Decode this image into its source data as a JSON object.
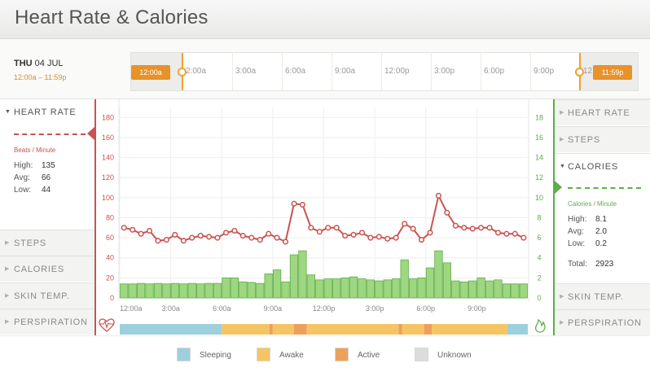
{
  "header": {
    "title": "Heart Rate & Calories"
  },
  "date": {
    "weekday": "THU",
    "date": "04 JUL",
    "range": "12:00a – 11:59p"
  },
  "timeline": {
    "start_flag": "12:00a",
    "end_flag": "11:59p",
    "labels": [
      "2:00a",
      "3:00a",
      "6:00a",
      "9:00a",
      "12:00p",
      "3:00p",
      "6:00p",
      "9:00p",
      "12"
    ]
  },
  "left_panel": {
    "active": {
      "label": "HEART RATE",
      "unit": "Beats / Minute",
      "stats": [
        {
          "label": "High:",
          "value": "135"
        },
        {
          "label": "Avg:",
          "value": "66"
        },
        {
          "label": "Low:",
          "value": "44"
        }
      ]
    },
    "items": [
      "STEPS",
      "CALORIES",
      "SKIN TEMP.",
      "PERSPIRATION"
    ]
  },
  "right_panel": {
    "items_top": [
      "HEART RATE",
      "STEPS"
    ],
    "active": {
      "label": "CALORIES",
      "unit": "Calories / Minute",
      "stats": [
        {
          "label": "High:",
          "value": "8.1"
        },
        {
          "label": "Avg:",
          "value": "2.0"
        },
        {
          "label": "Low:",
          "value": "0.2"
        }
      ],
      "total_label": "Total:",
      "total_value": "2923"
    },
    "items_bottom": [
      "SKIN TEMP.",
      "PERSPIRATION"
    ]
  },
  "icons": {
    "heart": "heart-rate-icon",
    "flame": "flame-icon",
    "caret_down": "caret-down-icon",
    "caret_right": "caret-right-icon"
  },
  "legend": [
    {
      "label": "Sleeping",
      "color": "#9ecfdc"
    },
    {
      "label": "Awake",
      "color": "#f5c563"
    },
    {
      "label": "Active",
      "color": "#eda05b"
    },
    {
      "label": "Unknown",
      "color": "#dcdcdc"
    }
  ],
  "colors": {
    "heart_rate": "#c9534f",
    "calories": "#5cae4a",
    "calories_fill": "#9fd680",
    "accent": "#e8922a"
  },
  "chart_data": {
    "type": "bar",
    "x_unit": "hours",
    "x_range": [
      0,
      24
    ],
    "x_ticks": [
      {
        "x": 0,
        "label": "12:00a"
      },
      {
        "x": 3,
        "label": "3:00a"
      },
      {
        "x": 6,
        "label": "6:00a"
      },
      {
        "x": 9,
        "label": "9:00a"
      },
      {
        "x": 12,
        "label": "12:00p"
      },
      {
        "x": 15,
        "label": "3:00p"
      },
      {
        "x": 18,
        "label": "6:00p"
      },
      {
        "x": 21,
        "label": "9:00p"
      }
    ],
    "left_axis": {
      "range": [
        0,
        190
      ],
      "ticks": [
        0,
        20,
        40,
        60,
        80,
        100,
        120,
        140,
        160,
        180
      ]
    },
    "right_axis": {
      "range": [
        0,
        19
      ],
      "ticks": [
        0,
        2,
        4,
        6,
        8,
        10,
        12,
        14,
        16,
        18
      ]
    },
    "grid": true,
    "series": [
      {
        "name": "Heart Rate",
        "type": "line",
        "axis": "left",
        "x": [
          0,
          0.5,
          1,
          1.5,
          2,
          2.5,
          3,
          3.5,
          4,
          4.5,
          5,
          5.5,
          6,
          6.5,
          7,
          7.5,
          8,
          8.5,
          9,
          9.5,
          10,
          10.5,
          11,
          11.5,
          12,
          12.5,
          13,
          13.5,
          14,
          14.5,
          15,
          15.5,
          16,
          16.5,
          17,
          17.5,
          18,
          18.5,
          19,
          19.5,
          20,
          20.5,
          21,
          21.5,
          22,
          22.5,
          23,
          23.5
        ],
        "values": [
          70,
          68,
          64,
          67,
          57,
          58,
          63,
          57,
          60,
          62,
          61,
          60,
          65,
          67,
          62,
          60,
          58,
          64,
          60,
          56,
          94,
          93,
          70,
          66,
          70,
          70,
          62,
          63,
          65,
          60,
          61,
          59,
          60,
          74,
          69,
          58,
          65,
          102,
          85,
          72,
          70,
          69,
          70,
          70,
          65,
          64,
          64,
          60
        ]
      },
      {
        "name": "Calories",
        "type": "bar",
        "axis": "right",
        "x": [
          0,
          0.5,
          1,
          1.5,
          2,
          2.5,
          3,
          3.5,
          4,
          4.5,
          5,
          5.5,
          6,
          6.5,
          7,
          7.5,
          8,
          8.5,
          9,
          9.5,
          10,
          10.5,
          11,
          11.5,
          12,
          12.5,
          13,
          13.5,
          14,
          14.5,
          15,
          15.5,
          16,
          16.5,
          17,
          17.5,
          18,
          18.5,
          19,
          19.5,
          20,
          20.5,
          21,
          21.5,
          22,
          22.5,
          23,
          23.5
        ],
        "values": [
          1.4,
          1.4,
          1.45,
          1.4,
          1.45,
          1.4,
          1.45,
          1.4,
          1.45,
          1.4,
          1.45,
          1.45,
          2.0,
          2.0,
          1.6,
          1.55,
          1.45,
          2.4,
          2.8,
          1.6,
          4.3,
          4.7,
          2.3,
          1.8,
          1.9,
          1.9,
          2.0,
          2.1,
          1.9,
          1.8,
          1.7,
          1.8,
          1.9,
          3.8,
          1.9,
          2.0,
          3.0,
          4.7,
          3.5,
          1.7,
          1.6,
          1.7,
          2.0,
          1.7,
          1.8,
          1.4,
          1.4,
          1.4
        ]
      }
    ],
    "activity_bands": [
      {
        "state": "Sleeping",
        "start": 0,
        "end": 6.0
      },
      {
        "state": "Awake",
        "start": 6.0,
        "end": 8.8
      },
      {
        "state": "Active",
        "start": 8.8,
        "end": 9.0
      },
      {
        "state": "Awake",
        "start": 9.0,
        "end": 10.25
      },
      {
        "state": "Active",
        "start": 10.25,
        "end": 11.0
      },
      {
        "state": "Awake",
        "start": 11.0,
        "end": 16.4
      },
      {
        "state": "Active",
        "start": 16.4,
        "end": 16.6
      },
      {
        "state": "Awake",
        "start": 16.6,
        "end": 17.9
      },
      {
        "state": "Active",
        "start": 17.9,
        "end": 18.35
      },
      {
        "state": "Awake",
        "start": 18.35,
        "end": 22.8
      },
      {
        "state": "Sleeping",
        "start": 22.8,
        "end": 24
      }
    ]
  }
}
